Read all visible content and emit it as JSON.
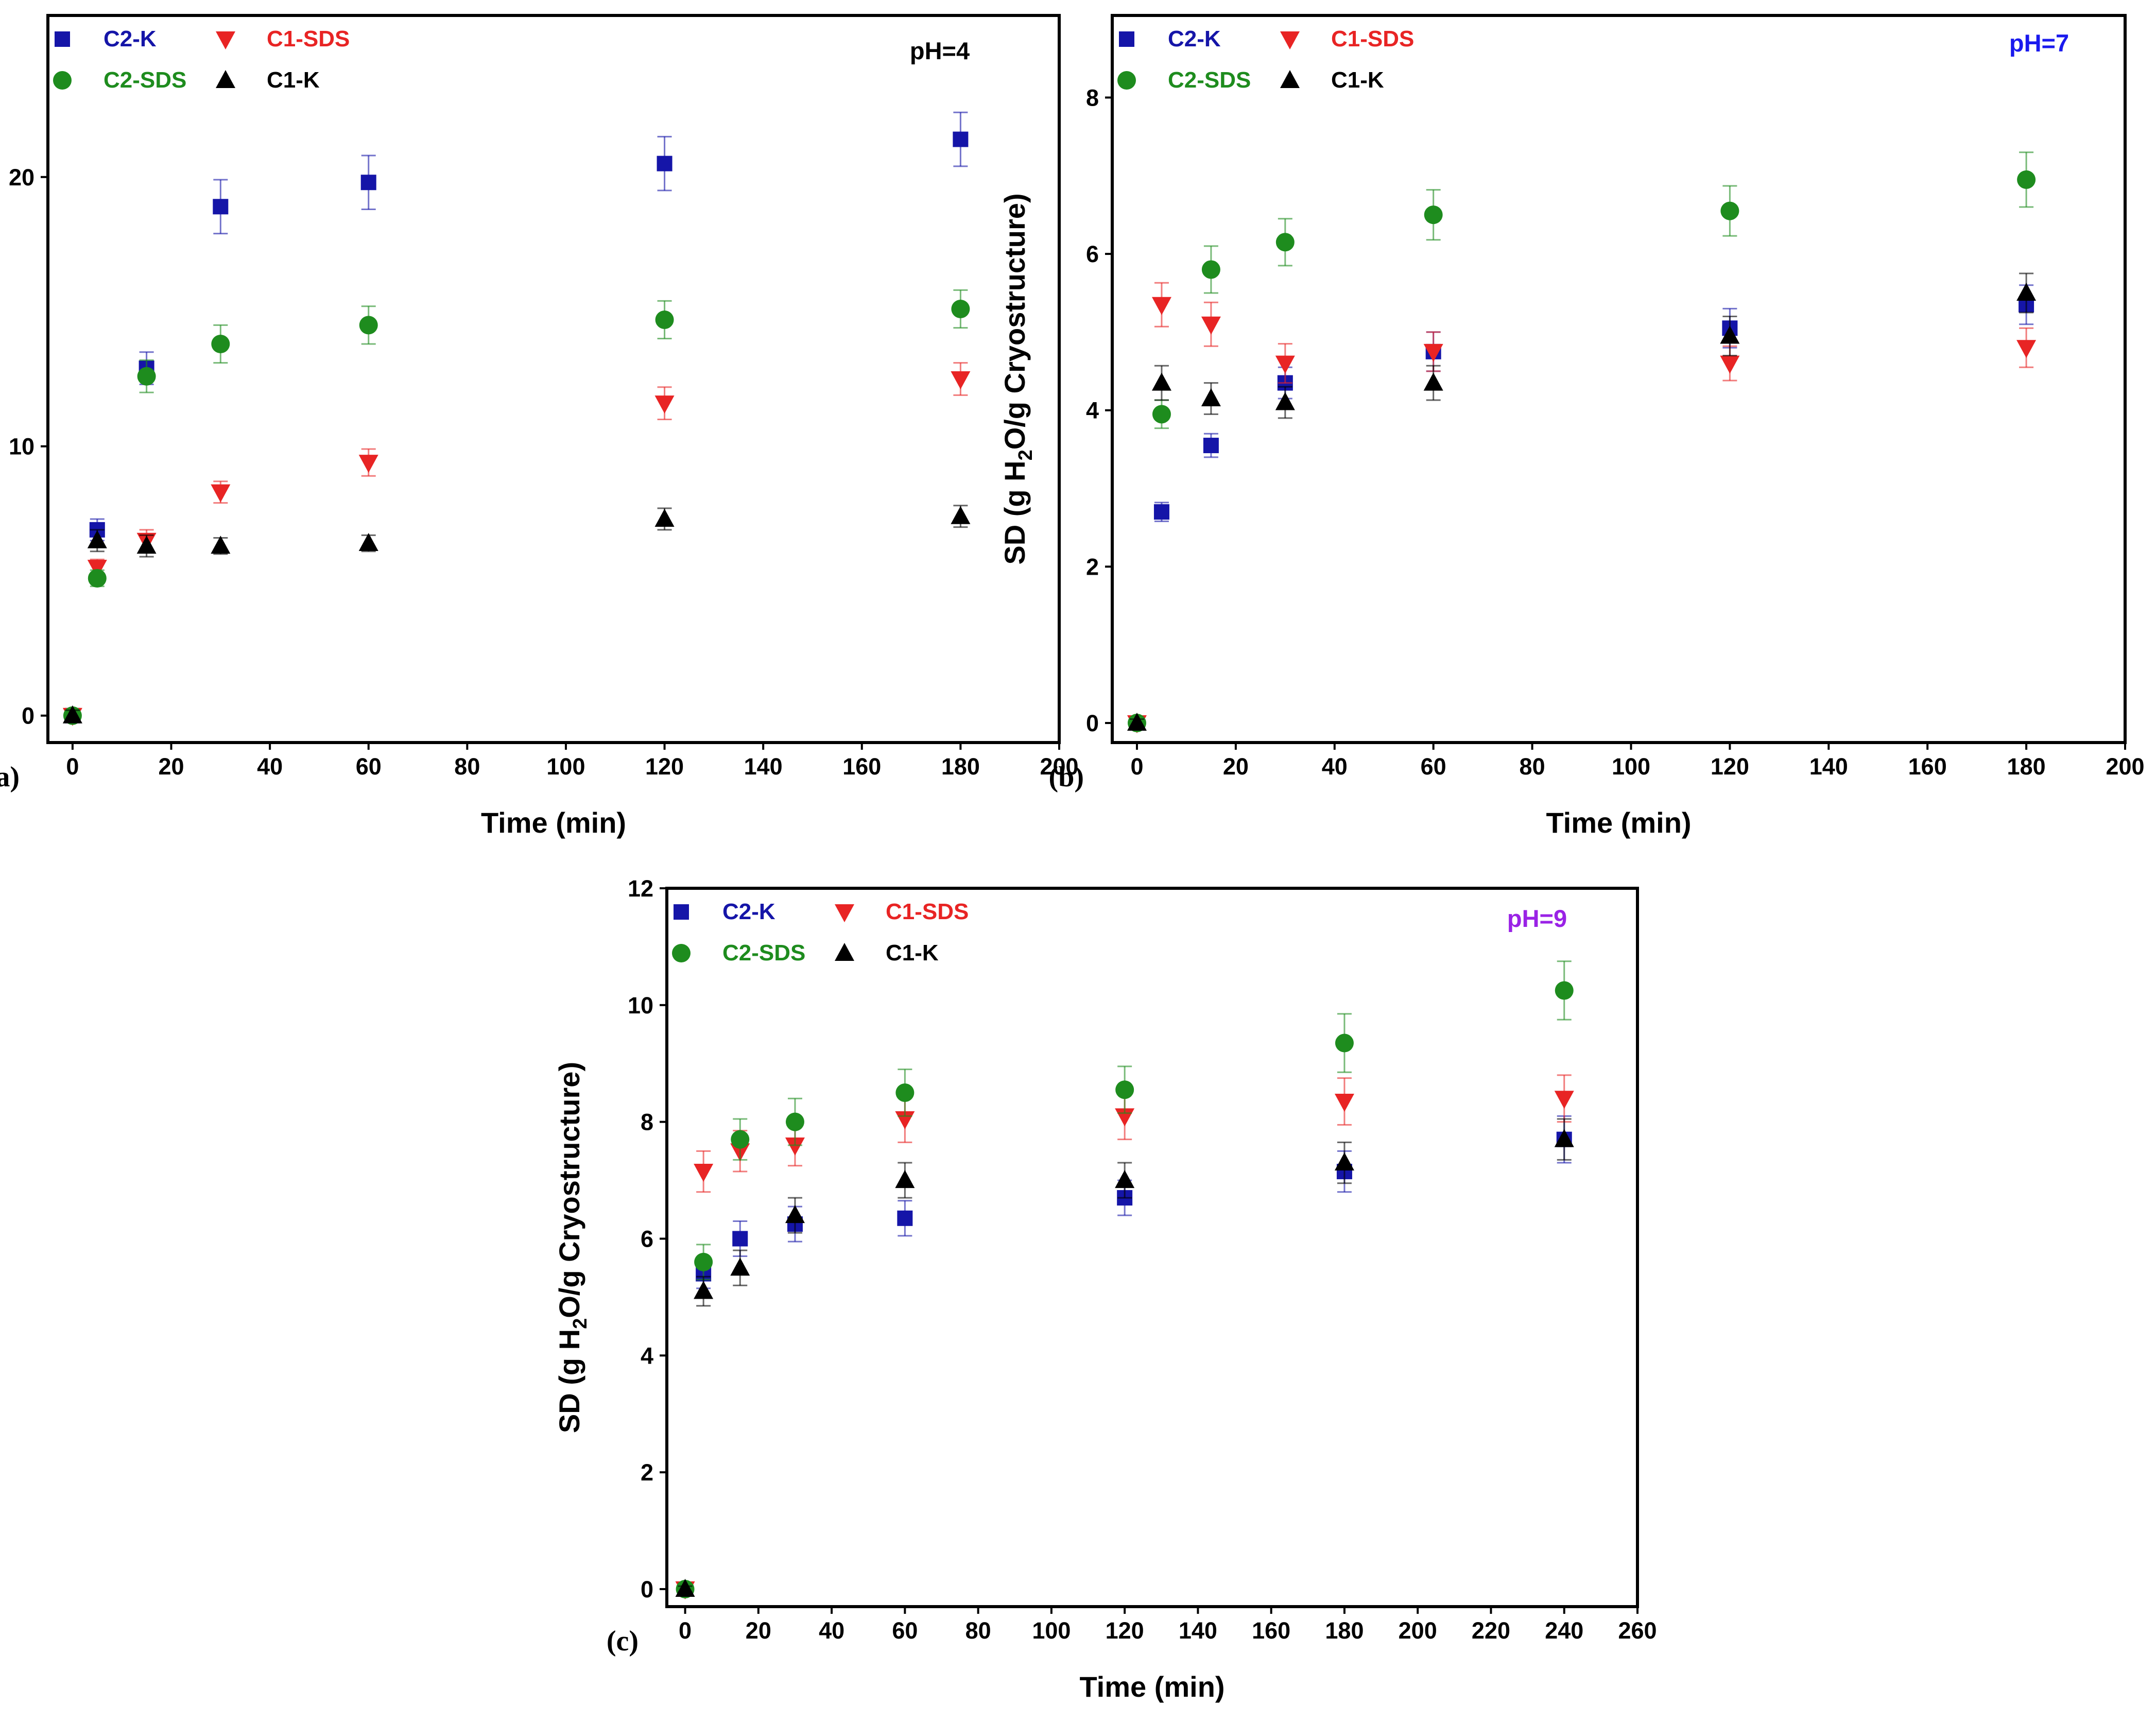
{
  "chart_data": [
    {
      "panel_label": "(a)",
      "type": "scatter",
      "annotation": "pH=4",
      "annotation_color": "#000000",
      "xlabel": "Time (min)",
      "ylabel_parts": [
        "SD (g H",
        "2",
        "O/g Cryostructure)"
      ],
      "xlim": [
        -5,
        200
      ],
      "ylim": [
        -1,
        26
      ],
      "xticks": [
        0,
        20,
        40,
        60,
        80,
        100,
        120,
        140,
        160,
        180,
        200
      ],
      "yticks": [
        0,
        10,
        20
      ],
      "legend": [
        "C2-K",
        "C1-SDS",
        "C2-SDS",
        "C1-K"
      ],
      "series": [
        {
          "name": "C2-K",
          "marker": "square",
          "color": "#1515a8",
          "label_color": "#1515a8",
          "x": [
            0,
            5,
            15,
            30,
            60,
            120,
            180
          ],
          "y": [
            0,
            6.9,
            12.9,
            18.9,
            19.8,
            20.5,
            21.4
          ],
          "err": [
            0.2,
            0.4,
            0.6,
            1.0,
            1.0,
            1.0,
            1.0
          ]
        },
        {
          "name": "C1-SDS",
          "marker": "tri-down",
          "color": "#e82424",
          "label_color": "#e82424",
          "x": [
            0,
            5,
            15,
            30,
            60,
            120,
            180
          ],
          "y": [
            0,
            5.5,
            6.5,
            8.3,
            9.4,
            11.6,
            12.5
          ],
          "err": [
            0.2,
            0.3,
            0.4,
            0.4,
            0.5,
            0.6,
            0.6
          ]
        },
        {
          "name": "C2-SDS",
          "marker": "circle",
          "color": "#1e8c1e",
          "label_color": "#1e8c1e",
          "x": [
            0,
            5,
            15,
            30,
            60,
            120,
            180
          ],
          "y": [
            0,
            5.1,
            12.6,
            13.8,
            14.5,
            14.7,
            15.1
          ],
          "err": [
            0.2,
            0.3,
            0.6,
            0.7,
            0.7,
            0.7,
            0.7
          ]
        },
        {
          "name": "C1-K",
          "marker": "tri-up",
          "color": "#000000",
          "label_color": "#000000",
          "x": [
            0,
            5,
            15,
            30,
            60,
            120,
            180
          ],
          "y": [
            0,
            6.5,
            6.3,
            6.3,
            6.4,
            7.3,
            7.4
          ],
          "err": [
            0.2,
            0.4,
            0.4,
            0.3,
            0.3,
            0.4,
            0.4
          ]
        }
      ]
    },
    {
      "panel_label": "(b)",
      "type": "scatter",
      "annotation": "pH=7",
      "annotation_color": "#1a1aee",
      "xlabel": "Time (min)",
      "ylabel_parts": [
        "SD (g H",
        "2",
        "O/g Cryostructure)"
      ],
      "xlim": [
        -5,
        200
      ],
      "ylim": [
        -0.25,
        9.05
      ],
      "xticks": [
        0,
        20,
        40,
        60,
        80,
        100,
        120,
        140,
        160,
        180,
        200
      ],
      "yticks": [
        0,
        2,
        4,
        6,
        8
      ],
      "legend": [
        "C2-K",
        "C1-SDS",
        "C2-SDS",
        "C1-K"
      ],
      "series": [
        {
          "name": "C2-K",
          "marker": "square",
          "color": "#1515a8",
          "label_color": "#1515a8",
          "x": [
            0,
            5,
            15,
            30,
            60,
            120,
            180
          ],
          "y": [
            0,
            2.7,
            3.55,
            4.35,
            4.75,
            5.05,
            5.35
          ],
          "err": [
            0.05,
            0.12,
            0.15,
            0.2,
            0.25,
            0.25,
            0.25
          ]
        },
        {
          "name": "C1-SDS",
          "marker": "tri-down",
          "color": "#e82424",
          "label_color": "#e82424",
          "x": [
            0,
            5,
            15,
            30,
            60,
            120,
            180
          ],
          "y": [
            0,
            5.35,
            5.1,
            4.6,
            4.75,
            4.6,
            4.8
          ],
          "err": [
            0.05,
            0.28,
            0.28,
            0.25,
            0.25,
            0.22,
            0.25
          ]
        },
        {
          "name": "C2-SDS",
          "marker": "circle",
          "color": "#1e8c1e",
          "label_color": "#1e8c1e",
          "x": [
            0,
            5,
            15,
            30,
            60,
            120,
            180
          ],
          "y": [
            0,
            3.95,
            5.8,
            6.15,
            6.5,
            6.55,
            6.95
          ],
          "err": [
            0.05,
            0.18,
            0.3,
            0.3,
            0.32,
            0.32,
            0.35
          ]
        },
        {
          "name": "C1-K",
          "marker": "tri-up",
          "color": "#000000",
          "label_color": "#000000",
          "x": [
            0,
            5,
            15,
            30,
            60,
            120,
            180
          ],
          "y": [
            0,
            4.35,
            4.15,
            4.1,
            4.35,
            4.95,
            5.5
          ],
          "err": [
            0.05,
            0.22,
            0.2,
            0.2,
            0.22,
            0.25,
            0.25
          ]
        }
      ]
    },
    {
      "panel_label": "(c)",
      "type": "scatter",
      "annotation": "pH=9",
      "annotation_color": "#9a22e6",
      "xlabel": "Time (min)",
      "ylabel_parts": [
        "SD (g H",
        "2",
        "O/g Cryostructure)"
      ],
      "xlim": [
        -5,
        260
      ],
      "ylim": [
        -0.3,
        12
      ],
      "xticks": [
        0,
        20,
        40,
        60,
        80,
        100,
        120,
        140,
        160,
        180,
        200,
        220,
        240,
        260
      ],
      "yticks": [
        0,
        2,
        4,
        6,
        8,
        10,
        12
      ],
      "legend": [
        "C2-K",
        "C1-SDS",
        "C2-SDS",
        "C1-K"
      ],
      "series": [
        {
          "name": "C2-K",
          "marker": "square",
          "color": "#1515a8",
          "label_color": "#1515a8",
          "x": [
            0,
            5,
            15,
            30,
            60,
            120,
            180,
            240
          ],
          "y": [
            0,
            5.4,
            6.0,
            6.25,
            6.35,
            6.7,
            7.15,
            7.7
          ],
          "err": [
            0.05,
            0.25,
            0.3,
            0.3,
            0.3,
            0.3,
            0.35,
            0.4
          ]
        },
        {
          "name": "C1-SDS",
          "marker": "tri-down",
          "color": "#e82424",
          "label_color": "#e82424",
          "x": [
            0,
            5,
            15,
            30,
            60,
            120,
            180,
            240
          ],
          "y": [
            0,
            7.15,
            7.5,
            7.6,
            8.05,
            8.1,
            8.35,
            8.4
          ],
          "err": [
            0.05,
            0.35,
            0.35,
            0.35,
            0.4,
            0.4,
            0.4,
            0.4
          ]
        },
        {
          "name": "C2-SDS",
          "marker": "circle",
          "color": "#1e8c1e",
          "label_color": "#1e8c1e",
          "x": [
            0,
            5,
            15,
            30,
            60,
            120,
            180,
            240
          ],
          "y": [
            0,
            5.6,
            7.7,
            8.0,
            8.5,
            8.55,
            9.35,
            10.25
          ],
          "err": [
            0.05,
            0.3,
            0.35,
            0.4,
            0.4,
            0.4,
            0.5,
            0.5
          ]
        },
        {
          "name": "C1-K",
          "marker": "tri-up",
          "color": "#000000",
          "label_color": "#000000",
          "x": [
            0,
            5,
            15,
            30,
            60,
            120,
            180,
            240
          ],
          "y": [
            0,
            5.1,
            5.5,
            6.4,
            7.0,
            7.0,
            7.3,
            7.7
          ],
          "err": [
            0.05,
            0.25,
            0.3,
            0.3,
            0.3,
            0.3,
            0.35,
            0.35
          ]
        }
      ]
    }
  ]
}
